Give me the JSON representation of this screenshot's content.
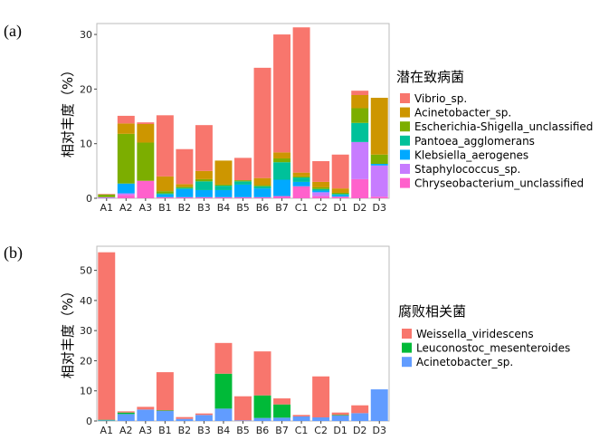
{
  "chart_data": [
    {
      "type": "bar",
      "stacked": true,
      "panel_label": "(a)",
      "ylabel": "相对丰度（%）",
      "ylim": [
        0,
        32
      ],
      "yticks": [
        0,
        10,
        20,
        30
      ],
      "categories": [
        "A1",
        "A2",
        "A3",
        "B1",
        "B2",
        "B3",
        "B4",
        "B5",
        "B6",
        "B7",
        "C1",
        "C2",
        "D1",
        "D2",
        "D3"
      ],
      "legend_title": "潜在致病菌",
      "legend_position": "right",
      "series": [
        {
          "name": "Chryseobacterium_unclassified",
          "color": "#FF61CC",
          "values": [
            0,
            0.6,
            3.2,
            0.2,
            0.2,
            0.2,
            0.2,
            0.2,
            0.2,
            0.4,
            2.2,
            0.4,
            0.3,
            3.5,
            0.3
          ]
        },
        {
          "name": "Staphylococcus_sp.",
          "color": "#C77CFF",
          "values": [
            0.2,
            0.3,
            0,
            0,
            0,
            0,
            0,
            0,
            0,
            0,
            0,
            0.7,
            0,
            6.8,
            5.7
          ]
        },
        {
          "name": "Klebsiella_aerogenes",
          "color": "#00A9FF",
          "values": [
            0,
            1.8,
            0,
            0.5,
            1.5,
            1.3,
            1.3,
            2.3,
            1.6,
            3.0,
            0.8,
            0.3,
            0.3,
            0,
            0.3
          ]
        },
        {
          "name": "Pantoea_agglomerans",
          "color": "#00C19A",
          "values": [
            0,
            0,
            0,
            0.2,
            0.2,
            1.6,
            0.8,
            0.6,
            0.4,
            3.2,
            0.8,
            0.3,
            0.2,
            3.5,
            0
          ]
        },
        {
          "name": "Escherichia-Shigella_unclassified",
          "color": "#7CAE00",
          "values": [
            0.5,
            9.1,
            7.0,
            0.4,
            0.2,
            0.4,
            0.2,
            0.2,
            0.2,
            0.7,
            0.2,
            0.3,
            0.2,
            2.7,
            1.7
          ]
        },
        {
          "name": "Acinetobacter_sp.",
          "color": "#CD9600",
          "values": [
            0,
            1.9,
            3.4,
            2.7,
            0.5,
            1.5,
            4.4,
            0,
            1.3,
            1.1,
            0.7,
            1.0,
            0.8,
            2.4,
            10.4
          ]
        },
        {
          "name": "Vibrio_sp.",
          "color": "#F8766D",
          "values": [
            0.1,
            1.4,
            0.3,
            11.2,
            6.4,
            8.4,
            0,
            4.1,
            20.2,
            21.6,
            26.6,
            3.8,
            6.2,
            0.8,
            0
          ]
        }
      ],
      "legend_order": [
        "Vibrio_sp.",
        "Acinetobacter_sp.",
        "Escherichia-Shigella_unclassified",
        "Pantoea_agglomerans",
        "Klebsiella_aerogenes",
        "Staphylococcus_sp.",
        "Chryseobacterium_unclassified"
      ]
    },
    {
      "type": "bar",
      "stacked": true,
      "panel_label": "(b)",
      "ylabel": "相对丰度（%）",
      "ylim": [
        0,
        58
      ],
      "yticks": [
        0,
        10,
        20,
        30,
        40,
        50
      ],
      "categories": [
        "A1",
        "A2",
        "A3",
        "B1",
        "B2",
        "B3",
        "B4",
        "B5",
        "B6",
        "B7",
        "C1",
        "C2",
        "D1",
        "D2",
        "D3"
      ],
      "legend_title": "腐败相关菌",
      "legend_position": "right",
      "series": [
        {
          "name": "Acinetobacter_sp.",
          "color": "#619CFF",
          "values": [
            0.2,
            2.3,
            3.8,
            3.3,
            0.7,
            2.0,
            4.1,
            0.2,
            1.0,
            1.1,
            1.5,
            1.2,
            1.8,
            2.6,
            10.5
          ]
        },
        {
          "name": "Leuconostoc_mesenteroides",
          "color": "#00BA38",
          "values": [
            0.2,
            0.5,
            0,
            0.2,
            0,
            0,
            11.6,
            0,
            7.5,
            4.4,
            0,
            0,
            0.2,
            0,
            0
          ]
        },
        {
          "name": "Weissella_viridescens",
          "color": "#F8766D",
          "values": [
            55.6,
            0.4,
            0.9,
            12.7,
            0.6,
            0.5,
            10.2,
            8.0,
            14.6,
            2.0,
            0.5,
            13.6,
            0.8,
            2.6,
            0
          ]
        }
      ],
      "legend_order": [
        "Weissella_viridescens",
        "Leuconostoc_mesenteroides",
        "Acinetobacter_sp."
      ]
    }
  ]
}
